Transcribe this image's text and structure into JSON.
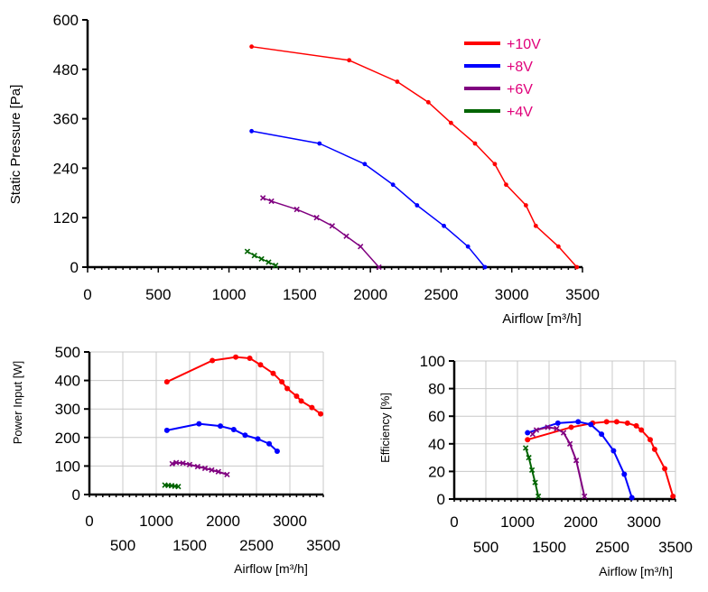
{
  "chart_data": [
    {
      "id": "pressure",
      "type": "line",
      "title": "",
      "xlabel": "Airflow [m³/h]",
      "ylabel": "Static Pressure [Pa]",
      "xlim": [
        0,
        3500
      ],
      "ylim": [
        0,
        600
      ],
      "xticks": [
        "0",
        "500",
        "1000",
        "1500",
        "2000",
        "2500",
        "3000",
        "3500"
      ],
      "yticks": [
        "0",
        "120",
        "240",
        "360",
        "480",
        "600"
      ],
      "grid": false,
      "legend_position": "top-right",
      "legend_text_color": "#e0007a",
      "series": [
        {
          "name": "+10V",
          "color": "#ff0000",
          "x": [
            1160,
            1850,
            2190,
            2410,
            2570,
            2740,
            2880,
            2960,
            3100,
            3170,
            3330,
            3460
          ],
          "y": [
            535,
            502,
            450,
            400,
            350,
            300,
            250,
            200,
            150,
            100,
            50,
            0
          ]
        },
        {
          "name": "+8V",
          "color": "#0000ff",
          "x": [
            1160,
            1640,
            1960,
            2160,
            2330,
            2520,
            2690,
            2810
          ],
          "y": [
            330,
            300,
            250,
            200,
            150,
            100,
            50,
            0
          ]
        },
        {
          "name": "+6V",
          "color": "#800080",
          "x": [
            1240,
            1300,
            1480,
            1620,
            1730,
            1830,
            1930,
            2060
          ],
          "y": [
            168,
            160,
            140,
            120,
            100,
            75,
            50,
            0
          ]
        },
        {
          "name": "+4V",
          "color": "#006400",
          "x": [
            1130,
            1180,
            1230,
            1280,
            1330
          ],
          "y": [
            38,
            28,
            20,
            12,
            4
          ]
        }
      ]
    },
    {
      "id": "power",
      "type": "line",
      "title": "",
      "xlabel": "Airflow [m³/h]",
      "ylabel": "Power Input [W]",
      "xlim": [
        0,
        3500
      ],
      "ylim": [
        0,
        500
      ],
      "xticks_upper": [
        "0",
        "1000",
        "2000",
        "3000"
      ],
      "xticks_lower": [
        "500",
        "1500",
        "2500",
        "3500"
      ],
      "yticks": [
        "0",
        "100",
        "200",
        "300",
        "400",
        "500"
      ],
      "grid": true,
      "series": [
        {
          "name": "+10V",
          "color": "#ff0000",
          "x": [
            1160,
            1840,
            2190,
            2400,
            2560,
            2750,
            2880,
            2960,
            3100,
            3170,
            3330,
            3460
          ],
          "y": [
            395,
            470,
            482,
            478,
            455,
            425,
            395,
            372,
            345,
            328,
            305,
            283
          ]
        },
        {
          "name": "+8V",
          "color": "#0000ff",
          "x": [
            1160,
            1640,
            1960,
            2160,
            2330,
            2520,
            2690,
            2810
          ],
          "y": [
            225,
            248,
            240,
            228,
            208,
            195,
            178,
            152
          ]
        },
        {
          "name": "+6V",
          "color": "#800080",
          "x": [
            1240,
            1300,
            1400,
            1500,
            1620,
            1730,
            1830,
            1930,
            2060
          ],
          "y": [
            108,
            112,
            110,
            105,
            98,
            92,
            86,
            80,
            70
          ]
        },
        {
          "name": "+4V",
          "color": "#006400",
          "x": [
            1130,
            1180,
            1230,
            1280,
            1330
          ],
          "y": [
            33,
            32,
            31,
            29,
            28
          ]
        }
      ]
    },
    {
      "id": "efficiency",
      "type": "line",
      "title": "",
      "xlabel": "Airflow [m³/h]",
      "ylabel": "Efficiency [%]",
      "xlim": [
        0,
        3500
      ],
      "ylim": [
        0,
        100
      ],
      "xticks_upper": [
        "0",
        "1000",
        "2000",
        "3000"
      ],
      "xticks_lower": [
        "500",
        "1500",
        "2500",
        "3500"
      ],
      "yticks": [
        "0",
        "20",
        "40",
        "60",
        "80",
        "100"
      ],
      "grid": true,
      "series": [
        {
          "name": "+10V",
          "color": "#ff0000",
          "x": [
            1160,
            1850,
            2190,
            2410,
            2570,
            2740,
            2880,
            2960,
            3100,
            3170,
            3330,
            3460
          ],
          "y": [
            43,
            52,
            55,
            56,
            56,
            55,
            53,
            50,
            43,
            36,
            22,
            2
          ]
        },
        {
          "name": "+8V",
          "color": "#0000ff",
          "x": [
            1160,
            1640,
            1960,
            2160,
            2330,
            2520,
            2690,
            2810
          ],
          "y": [
            48,
            55,
            56,
            54,
            47,
            35,
            18,
            1
          ]
        },
        {
          "name": "+6V",
          "color": "#800080",
          "x": [
            1240,
            1300,
            1480,
            1620,
            1730,
            1830,
            1930,
            2060
          ],
          "y": [
            47,
            50,
            52,
            51,
            48,
            40,
            28,
            2
          ]
        },
        {
          "name": "+4V",
          "color": "#006400",
          "x": [
            1130,
            1180,
            1230,
            1280,
            1330
          ],
          "y": [
            37,
            30,
            21,
            12,
            2
          ]
        }
      ]
    }
  ]
}
